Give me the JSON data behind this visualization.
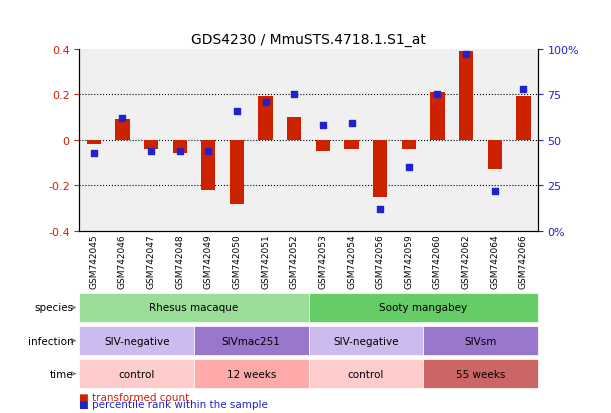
{
  "title": "GDS4230 / MmuSTS.4718.1.S1_at",
  "samples": [
    "GSM742045",
    "GSM742046",
    "GSM742047",
    "GSM742048",
    "GSM742049",
    "GSM742050",
    "GSM742051",
    "GSM742052",
    "GSM742053",
    "GSM742054",
    "GSM742056",
    "GSM742059",
    "GSM742060",
    "GSM742062",
    "GSM742064",
    "GSM742066"
  ],
  "bar_values": [
    -0.02,
    0.09,
    -0.04,
    -0.06,
    -0.22,
    -0.28,
    0.19,
    0.1,
    -0.05,
    -0.04,
    -0.25,
    -0.04,
    0.21,
    0.39,
    -0.13,
    0.19
  ],
  "dot_values": [
    0.43,
    0.62,
    0.44,
    0.44,
    0.44,
    0.66,
    0.71,
    0.75,
    0.58,
    0.59,
    0.12,
    0.35,
    0.75,
    0.97,
    0.22,
    0.78
  ],
  "bar_color": "#cc2200",
  "dot_color": "#2222cc",
  "ylim": [
    -0.4,
    0.4
  ],
  "y2lim": [
    0,
    1.0
  ],
  "yticks": [
    -0.4,
    -0.2,
    0.0,
    0.2,
    0.4
  ],
  "ytick_labels": [
    "-0.4",
    "-0.2",
    "0",
    "0.2",
    "0.4"
  ],
  "y2ticks": [
    0,
    0.25,
    0.5,
    0.75,
    1.0
  ],
  "y2tick_labels": [
    "0%",
    "25",
    "50",
    "75",
    "100%"
  ],
  "hlines": [
    -0.2,
    0.0,
    0.2
  ],
  "species_labels": [
    {
      "text": "Rhesus macaque",
      "start": 0,
      "end": 7,
      "color": "#99dd99"
    },
    {
      "text": "Sooty mangabey",
      "start": 8,
      "end": 15,
      "color": "#66cc66"
    }
  ],
  "infection_labels": [
    {
      "text": "SIV-negative",
      "start": 0,
      "end": 3,
      "color": "#ccbbee"
    },
    {
      "text": "SIVmac251",
      "start": 4,
      "end": 7,
      "color": "#9977cc"
    },
    {
      "text": "SIV-negative",
      "start": 8,
      "end": 11,
      "color": "#ccbbee"
    },
    {
      "text": "SIVsm",
      "start": 12,
      "end": 15,
      "color": "#9977cc"
    }
  ],
  "time_labels": [
    {
      "text": "control",
      "start": 0,
      "end": 3,
      "color": "#ffcccc"
    },
    {
      "text": "12 weeks",
      "start": 4,
      "end": 7,
      "color": "#ffaaaa"
    },
    {
      "text": "control",
      "start": 8,
      "end": 11,
      "color": "#ffcccc"
    },
    {
      "text": "55 weeks",
      "start": 12,
      "end": 15,
      "color": "#cc6666"
    }
  ],
  "legend_items": [
    {
      "label": "transformed count",
      "color": "#cc2200"
    },
    {
      "label": "percentile rank within the sample",
      "color": "#2222cc"
    }
  ],
  "row_labels": [
    "species",
    "infection",
    "time"
  ],
  "bg_color": "#ffffff",
  "grid_color": "#dddddd",
  "bar_width": 0.5
}
